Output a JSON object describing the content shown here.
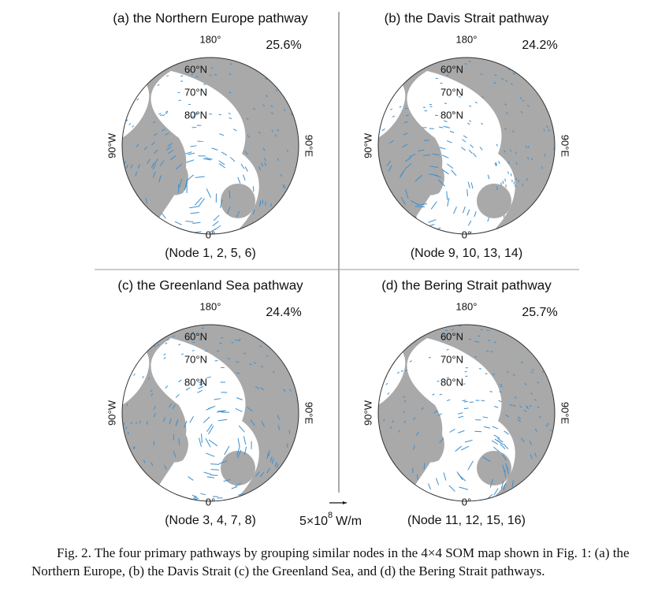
{
  "panels": [
    {
      "title": "(a) the Northern Europe pathway",
      "percent": "25.6%",
      "nodes": "(Node 1, 2, 5, 6)"
    },
    {
      "title": "(b) the Davis Strait pathway",
      "percent": "24.2%",
      "nodes": "(Node 9, 10, 13, 14)"
    },
    {
      "title": "(c) the Greenland Sea pathway",
      "percent": "24.4%",
      "nodes": "(Node 3, 4, 7, 8)"
    },
    {
      "title": "(d) the Bering Strait pathway",
      "percent": "25.7%",
      "nodes": "(Node 11, 12, 15, 16)"
    }
  ],
  "map_labels": {
    "top": "180°",
    "bottom": "0°",
    "left": "90°W",
    "right": "90°E",
    "lat60": "60°N",
    "lat70": "70°N",
    "lat80": "80°N"
  },
  "scale": {
    "base": "5×10",
    "exponent": "8",
    "unit": "W/m"
  },
  "caption": "Fig. 2. The four primary pathways by grouping similar nodes in the 4×4 SOM map shown in Fig. 1: (a) the Northern Europe, (b) the Davis Strait (c) the Greenland Sea, and (d) the Bering Strait pathways."
}
